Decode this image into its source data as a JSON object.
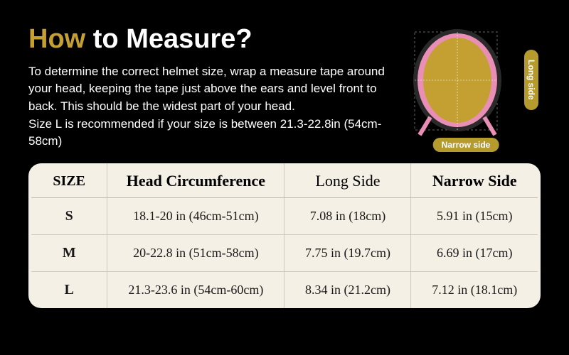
{
  "title": {
    "gold": "How",
    "white": "to Measure?"
  },
  "description": "To determine the correct helmet size, wrap a measure tape around your head, keeping the tape just above the  ears and level front to back. This should be the widest part of your head.\nSize L is recommended if your size is between 21.3-22.8in (54cm-58cm)",
  "helmet": {
    "long_side_label": "Long side",
    "narrow_side_label": "Narrow side",
    "shell_color": "#e98fb5",
    "inner_color": "#c4a033",
    "outline_color": "#555"
  },
  "table": {
    "columns": [
      "SIZE",
      "Head Circumference",
      "Long Side",
      "Narrow Side"
    ],
    "rows": [
      [
        "S",
        "18.1-20 in (46cm-51cm)",
        "7.08 in (18cm)",
        "5.91 in (15cm)"
      ],
      [
        "M",
        "20-22.8 in (51cm-58cm)",
        "7.75 in (19.7cm)",
        "6.69 in (17cm)"
      ],
      [
        "L",
        "21.3-23.6 in (54cm-60cm)",
        "8.34 in (21.2cm)",
        "7.12 in (18.1cm)"
      ]
    ],
    "background_color": "#f5f0e6",
    "border_color": "#d0cabe",
    "header_font": "serif"
  },
  "colors": {
    "page_bg": "#000000",
    "gold": "#c4a033",
    "white": "#ffffff"
  }
}
